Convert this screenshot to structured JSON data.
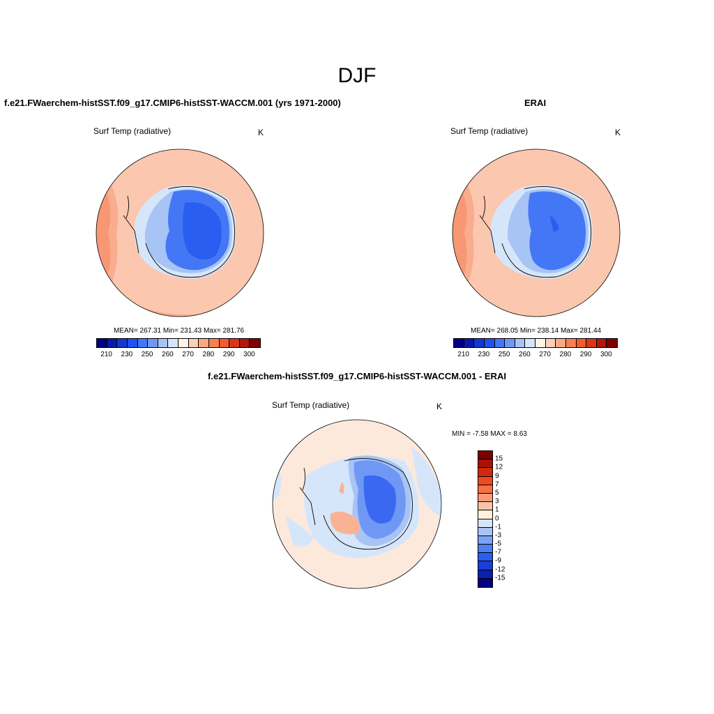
{
  "season": "DJF",
  "panels": {
    "model": {
      "title": "f.e21.FWaerchem-histSST.f09_g17.CMIP6-histSST-WACCM.001 (yrs 1971-2000)",
      "variable": "Surf Temp (radiative)",
      "units": "K",
      "stats": "MEAN= 267.31  Min= 231.43  Max= 281.76"
    },
    "obs": {
      "title": "ERAI",
      "variable": "Surf Temp (radiative)",
      "units": "K",
      "stats": "MEAN= 268.05  Min= 238.14  Max= 281.44"
    },
    "diff": {
      "title": "f.e21.FWaerchem-histSST.f09_g17.CMIP6-histSST-WACCM.001 - ERAI",
      "variable": "Surf Temp (radiative)",
      "units": "K",
      "stats": "MIN =  -7.58 MAX =   8.63"
    }
  },
  "colorbars": {
    "field": {
      "colors": [
        "#000080",
        "#0a1aa8",
        "#1337d0",
        "#2050f0",
        "#4477f5",
        "#6f98f5",
        "#a8c4f5",
        "#d6e6fa",
        "#fff2e6",
        "#fbd0b8",
        "#f9a886",
        "#f77f55",
        "#f25b2e",
        "#d8351a",
        "#b0180c",
        "#7f0000"
      ],
      "tick_labels": [
        "210",
        "230",
        "250",
        "260",
        "270",
        "280",
        "290",
        "300"
      ]
    },
    "diff": {
      "colors": [
        "#7f0000",
        "#a81208",
        "#d02a0e",
        "#f04a1e",
        "#f7704a",
        "#f99a78",
        "#fac2a6",
        "#fff0e0",
        "#d6e6fa",
        "#a8c4f5",
        "#7ba3f5",
        "#4f7ff5",
        "#2a5ef0",
        "#1a3ed8",
        "#0c20b0",
        "#000080"
      ],
      "tick_labels": [
        "15",
        "12",
        "9",
        "7",
        "5",
        "3",
        "1",
        "0",
        "-1",
        "-3",
        "-5",
        "-7",
        "-9",
        "-12",
        "-15"
      ]
    }
  },
  "map_colors": {
    "ocean_warm": "#fbc7ae",
    "ocean_warmer": "#f8a280",
    "ocean_hot": "#f47e55",
    "ice_edge": "#d6e6fa",
    "ice_mid": "#a8c4f5",
    "ice_cold": "#4477f5",
    "ice_coldest": "#2a5ef0",
    "diff_bg": "#fde9dc",
    "diff_neg1": "#d6e6fa",
    "diff_neg3": "#a8c4f5",
    "diff_neg5": "#6f98f5",
    "diff_neg7": "#3a68f0",
    "diff_pos": "#f9b394"
  }
}
